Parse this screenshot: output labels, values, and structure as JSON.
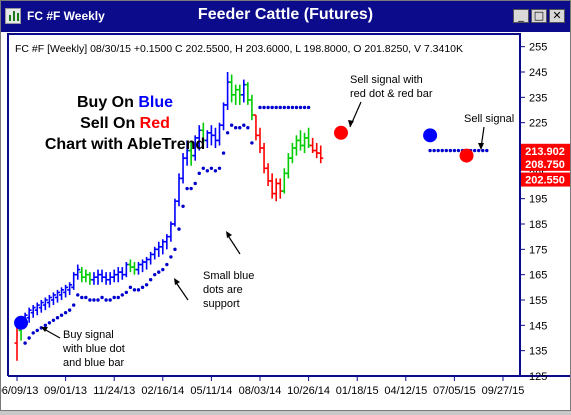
{
  "window": {
    "title_left": "FC #F Weekly",
    "title_center": "Feeder Cattle (Futures)",
    "minimize_label": "_",
    "maximize_label": "□",
    "close_label": "✕",
    "titlebar_color": "#0b0b8c"
  },
  "chart_data": {
    "type": "candlestick",
    "info_line": "FC #F [Weekly] 08/30/15 +0.1500 C 202.5500, H 203.6000, L 198.8000, O 201.8250, V 7.3410K",
    "y_ticks": [
      125,
      135,
      145,
      155,
      165,
      175,
      185,
      195,
      205,
      215,
      225,
      235,
      245,
      255
    ],
    "ylim": [
      125,
      260
    ],
    "x_tick_labels": [
      "06/09/13",
      "09/01/13",
      "11/24/13",
      "02/16/14",
      "05/11/14",
      "08/03/14",
      "10/26/14",
      "01/18/15",
      "04/12/15",
      "07/05/15",
      "09/27/15"
    ],
    "x_tick_weeks": [
      0,
      12,
      24,
      36,
      48,
      60,
      72,
      84,
      96,
      108,
      120
    ],
    "colors": {
      "blue": "#0000ff",
      "green": "#00cc00",
      "red": "#ff0000",
      "dot": "#0000cc",
      "frame": "#0b0b8c"
    },
    "price_boxes": [
      {
        "value": 213.902,
        "label": "213.902"
      },
      {
        "value": 208.75,
        "label": "208.750"
      },
      {
        "value": 202.55,
        "label": "202.550"
      }
    ],
    "annotations": {
      "headline": [
        {
          "parts": [
            {
              "text": "Buy On ",
              "color": "#000000"
            },
            {
              "text": "Blue",
              "color": "#0000ff"
            }
          ]
        },
        {
          "parts": [
            {
              "text": "Sell On ",
              "color": "#000000"
            },
            {
              "text": "Red",
              "color": "#ff0000"
            }
          ]
        },
        {
          "parts": [
            {
              "text": "Chart with AbleTrend",
              "color": "#000000"
            }
          ]
        }
      ],
      "sell_signal_dot": [
        "Sell signal with",
        "red dot & red bar"
      ],
      "sell_signal": [
        "Sell signal"
      ],
      "support": [
        "Small blue",
        "dots are",
        "support"
      ],
      "buy_signal": [
        "Buy signal",
        "with blue dot",
        "and blue bar"
      ]
    },
    "signals": [
      {
        "kind": "buy",
        "week": 1,
        "price": 146
      },
      {
        "kind": "sell",
        "week": 80,
        "price": 221
      },
      {
        "kind": "buy",
        "week": 102,
        "price": 220
      },
      {
        "kind": "sell",
        "week": 111,
        "price": 212
      }
    ],
    "bars": [
      {
        "w": 0,
        "o": 138,
        "h": 147,
        "l": 131,
        "c": 144,
        "col": "red"
      },
      {
        "w": 1,
        "o": 143,
        "h": 147,
        "l": 139,
        "c": 146,
        "col": "green"
      },
      {
        "w": 2,
        "o": 145,
        "h": 150,
        "l": 144,
        "c": 149,
        "col": "blue"
      },
      {
        "w": 3,
        "o": 148,
        "h": 152,
        "l": 146,
        "c": 151,
        "col": "blue"
      },
      {
        "w": 4,
        "o": 150,
        "h": 153,
        "l": 148,
        "c": 152,
        "col": "blue"
      },
      {
        "w": 5,
        "o": 151,
        "h": 154,
        "l": 149,
        "c": 153,
        "col": "blue"
      },
      {
        "w": 6,
        "o": 152,
        "h": 155,
        "l": 150,
        "c": 154,
        "col": "blue"
      },
      {
        "w": 7,
        "o": 153,
        "h": 156,
        "l": 151,
        "c": 155,
        "col": "blue"
      },
      {
        "w": 8,
        "o": 154,
        "h": 157,
        "l": 152,
        "c": 156,
        "col": "blue"
      },
      {
        "w": 9,
        "o": 155,
        "h": 158,
        "l": 153,
        "c": 157,
        "col": "blue"
      },
      {
        "w": 10,
        "o": 156,
        "h": 159,
        "l": 154,
        "c": 158,
        "col": "blue"
      },
      {
        "w": 11,
        "o": 157,
        "h": 160,
        "l": 155,
        "c": 159,
        "col": "blue"
      },
      {
        "w": 12,
        "o": 158,
        "h": 161,
        "l": 156,
        "c": 160,
        "col": "blue"
      },
      {
        "w": 13,
        "o": 159,
        "h": 162,
        "l": 157,
        "c": 161,
        "col": "blue"
      },
      {
        "w": 14,
        "o": 160,
        "h": 166,
        "l": 159,
        "c": 165,
        "col": "blue"
      },
      {
        "w": 15,
        "o": 165,
        "h": 169,
        "l": 163,
        "c": 167,
        "col": "blue"
      },
      {
        "w": 16,
        "o": 166,
        "h": 168,
        "l": 162,
        "c": 164,
        "col": "green"
      },
      {
        "w": 17,
        "o": 164,
        "h": 167,
        "l": 162,
        "c": 165,
        "col": "green"
      },
      {
        "w": 18,
        "o": 165,
        "h": 166,
        "l": 161,
        "c": 163,
        "col": "green"
      },
      {
        "w": 19,
        "o": 163,
        "h": 166,
        "l": 161,
        "c": 164,
        "col": "blue"
      },
      {
        "w": 20,
        "o": 164,
        "h": 167,
        "l": 161,
        "c": 165,
        "col": "blue"
      },
      {
        "w": 21,
        "o": 165,
        "h": 167,
        "l": 162,
        "c": 164,
        "col": "blue"
      },
      {
        "w": 22,
        "o": 164,
        "h": 166,
        "l": 161,
        "c": 163,
        "col": "blue"
      },
      {
        "w": 23,
        "o": 163,
        "h": 166,
        "l": 161,
        "c": 164,
        "col": "blue"
      },
      {
        "w": 24,
        "o": 164,
        "h": 167,
        "l": 162,
        "c": 165,
        "col": "blue"
      },
      {
        "w": 25,
        "o": 165,
        "h": 168,
        "l": 162,
        "c": 166,
        "col": "blue"
      },
      {
        "w": 26,
        "o": 166,
        "h": 168,
        "l": 163,
        "c": 165,
        "col": "blue"
      },
      {
        "w": 27,
        "o": 165,
        "h": 170,
        "l": 164,
        "c": 169,
        "col": "blue"
      },
      {
        "w": 28,
        "o": 169,
        "h": 171,
        "l": 166,
        "c": 168,
        "col": "green"
      },
      {
        "w": 29,
        "o": 168,
        "h": 170,
        "l": 165,
        "c": 167,
        "col": "green"
      },
      {
        "w": 30,
        "o": 167,
        "h": 170,
        "l": 165,
        "c": 169,
        "col": "blue"
      },
      {
        "w": 31,
        "o": 169,
        "h": 171,
        "l": 166,
        "c": 170,
        "col": "blue"
      },
      {
        "w": 32,
        "o": 170,
        "h": 172,
        "l": 167,
        "c": 171,
        "col": "blue"
      },
      {
        "w": 33,
        "o": 171,
        "h": 174,
        "l": 169,
        "c": 173,
        "col": "blue"
      },
      {
        "w": 34,
        "o": 173,
        "h": 176,
        "l": 171,
        "c": 175,
        "col": "blue"
      },
      {
        "w": 35,
        "o": 175,
        "h": 178,
        "l": 172,
        "c": 176,
        "col": "blue"
      },
      {
        "w": 36,
        "o": 176,
        "h": 179,
        "l": 173,
        "c": 178,
        "col": "blue"
      },
      {
        "w": 37,
        "o": 178,
        "h": 181,
        "l": 175,
        "c": 180,
        "col": "blue"
      },
      {
        "w": 38,
        "o": 180,
        "h": 186,
        "l": 178,
        "c": 185,
        "col": "blue"
      },
      {
        "w": 39,
        "o": 185,
        "h": 195,
        "l": 184,
        "c": 194,
        "col": "blue"
      },
      {
        "w": 40,
        "o": 194,
        "h": 205,
        "l": 192,
        "c": 203,
        "col": "blue"
      },
      {
        "w": 41,
        "o": 203,
        "h": 213,
        "l": 201,
        "c": 211,
        "col": "blue"
      },
      {
        "w": 42,
        "o": 211,
        "h": 218,
        "l": 208,
        "c": 214,
        "col": "blue"
      },
      {
        "w": 43,
        "o": 214,
        "h": 218,
        "l": 208,
        "c": 212,
        "col": "green"
      },
      {
        "w": 44,
        "o": 212,
        "h": 220,
        "l": 210,
        "c": 219,
        "col": "blue"
      },
      {
        "w": 45,
        "o": 219,
        "h": 224,
        "l": 214,
        "c": 222,
        "col": "blue"
      },
      {
        "w": 46,
        "o": 222,
        "h": 225,
        "l": 216,
        "c": 218,
        "col": "green"
      },
      {
        "w": 47,
        "o": 218,
        "h": 222,
        "l": 215,
        "c": 221,
        "col": "blue"
      },
      {
        "w": 48,
        "o": 221,
        "h": 224,
        "l": 216,
        "c": 220,
        "col": "blue"
      },
      {
        "w": 49,
        "o": 220,
        "h": 223,
        "l": 215,
        "c": 218,
        "col": "blue"
      },
      {
        "w": 50,
        "o": 218,
        "h": 225,
        "l": 216,
        "c": 224,
        "col": "blue"
      },
      {
        "w": 51,
        "o": 224,
        "h": 233,
        "l": 222,
        "c": 232,
        "col": "blue"
      },
      {
        "w": 52,
        "o": 232,
        "h": 245,
        "l": 230,
        "c": 241,
        "col": "blue"
      },
      {
        "w": 53,
        "o": 241,
        "h": 244,
        "l": 233,
        "c": 236,
        "col": "green"
      },
      {
        "w": 54,
        "o": 236,
        "h": 240,
        "l": 232,
        "c": 238,
        "col": "green"
      },
      {
        "w": 55,
        "o": 238,
        "h": 240,
        "l": 232,
        "c": 236,
        "col": "green"
      },
      {
        "w": 56,
        "o": 236,
        "h": 242,
        "l": 233,
        "c": 240,
        "col": "blue"
      },
      {
        "w": 57,
        "o": 240,
        "h": 241,
        "l": 232,
        "c": 234,
        "col": "green"
      },
      {
        "w": 58,
        "o": 234,
        "h": 236,
        "l": 226,
        "c": 228,
        "col": "green"
      },
      {
        "w": 59,
        "o": 228,
        "h": 228,
        "l": 218,
        "c": 220,
        "col": "red"
      },
      {
        "w": 60,
        "o": 220,
        "h": 223,
        "l": 213,
        "c": 215,
        "col": "red"
      },
      {
        "w": 61,
        "o": 215,
        "h": 217,
        "l": 205,
        "c": 207,
        "col": "red"
      },
      {
        "w": 62,
        "o": 207,
        "h": 209,
        "l": 200,
        "c": 202,
        "col": "red"
      },
      {
        "w": 63,
        "o": 202,
        "h": 205,
        "l": 195,
        "c": 197,
        "col": "red"
      },
      {
        "w": 64,
        "o": 197,
        "h": 203,
        "l": 194,
        "c": 201,
        "col": "red"
      },
      {
        "w": 65,
        "o": 201,
        "h": 203,
        "l": 195,
        "c": 198,
        "col": "red"
      },
      {
        "w": 66,
        "o": 198,
        "h": 207,
        "l": 197,
        "c": 205,
        "col": "green"
      },
      {
        "w": 67,
        "o": 205,
        "h": 213,
        "l": 203,
        "c": 211,
        "col": "green"
      },
      {
        "w": 68,
        "o": 211,
        "h": 217,
        "l": 209,
        "c": 215,
        "col": "green"
      },
      {
        "w": 69,
        "o": 215,
        "h": 220,
        "l": 212,
        "c": 218,
        "col": "green"
      },
      {
        "w": 70,
        "o": 218,
        "h": 222,
        "l": 214,
        "c": 216,
        "col": "green"
      },
      {
        "w": 71,
        "o": 216,
        "h": 221,
        "l": 213,
        "c": 219,
        "col": "green"
      },
      {
        "w": 72,
        "o": 219,
        "h": 223,
        "l": 215,
        "c": 216,
        "col": "green"
      },
      {
        "w": 73,
        "o": 216,
        "h": 219,
        "l": 213,
        "c": 214,
        "col": "red"
      },
      {
        "w": 74,
        "o": 214,
        "h": 217,
        "l": 211,
        "c": 213,
        "col": "red"
      },
      {
        "w": 75,
        "o": 213,
        "h": 216,
        "l": 209,
        "c": 211,
        "col": "red"
      }
    ]
  }
}
